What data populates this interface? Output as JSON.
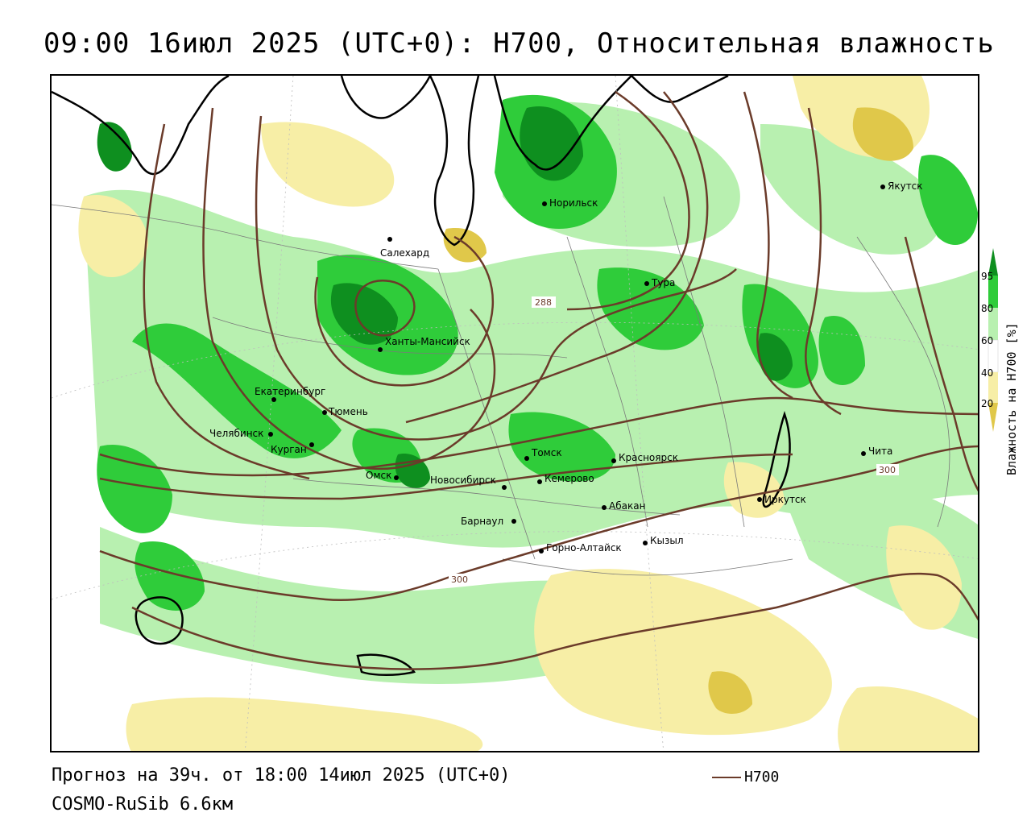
{
  "header": {
    "title": "09:00 16июл 2025 (UTC+0): H700, Относительная влажность"
  },
  "footer": {
    "forecast": "Прогноз на 39ч. от 18:00 14июл 2025 (UTC+0)",
    "model": "COSMO-RuSib 6.6км"
  },
  "legend": {
    "line_label": "H700",
    "line_color": "#6b3b2a",
    "colorbar_title": "Влажность на H700 [%]",
    "ticks": [
      "95",
      "80",
      "60",
      "40",
      "20"
    ],
    "colors": {
      "c95": "#0e8f1f",
      "c80": "#2fcc3a",
      "c60": "#b8f0b0",
      "c40": "#ffffff",
      "c20": "#f7eea6",
      "c0": "#e0c84a"
    }
  },
  "map": {
    "cities": [
      {
        "name": "Норильск"
      },
      {
        "name": "Якутск"
      },
      {
        "name": "Салехард"
      },
      {
        "name": "Тура"
      },
      {
        "name": "Ханты-Мансийск"
      },
      {
        "name": "Екатеринбург"
      },
      {
        "name": "Тюмень"
      },
      {
        "name": "Челябинск"
      },
      {
        "name": "Курган"
      },
      {
        "name": "Омск"
      },
      {
        "name": "Новосибирск"
      },
      {
        "name": "Томск"
      },
      {
        "name": "Кемерово"
      },
      {
        "name": "Красноярск"
      },
      {
        "name": "Барнаул"
      },
      {
        "name": "Абакан"
      },
      {
        "name": "Горно-Алтайск"
      },
      {
        "name": "Кызыл"
      },
      {
        "name": "Иркутск"
      },
      {
        "name": "Чита"
      }
    ],
    "contour_labels": [
      "288",
      "300",
      "300"
    ]
  }
}
